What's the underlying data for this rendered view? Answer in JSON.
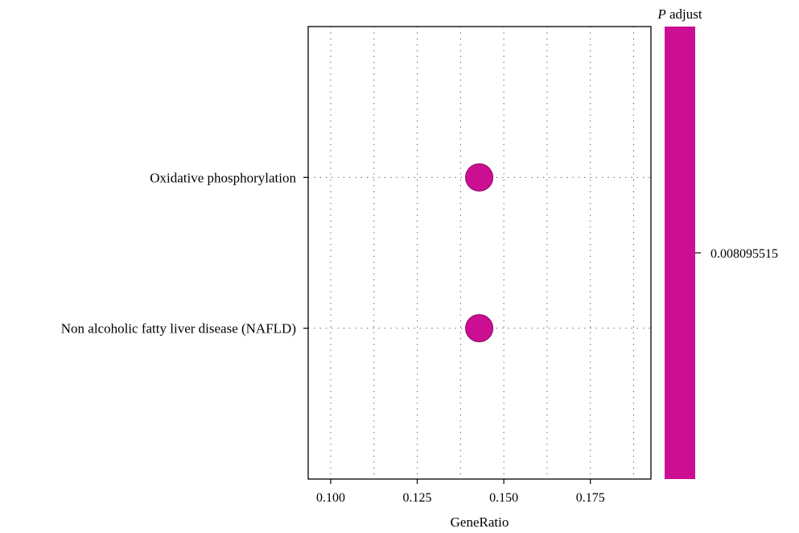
{
  "chart_data": {
    "type": "scatter",
    "title": "",
    "xlabel": "GeneRatio",
    "ylabel": "",
    "xlim": [
      0.0935,
      0.1925
    ],
    "xticks": [
      0.1,
      0.125,
      0.15,
      0.175
    ],
    "xtick_labels": [
      "0.100",
      "0.125",
      "0.150",
      "0.175"
    ],
    "xgrid_minor": [
      0.1125,
      0.1375,
      0.1625,
      0.1875
    ],
    "grid": true,
    "grid_style": "dotted",
    "categories": [
      "Oxidative phosphorylation",
      "Non alcoholic fatty liver disease (NAFLD)"
    ],
    "points": [
      {
        "category": "Oxidative phosphorylation",
        "x": 0.1429,
        "p_adjust": 0.008095515
      },
      {
        "category": "Non alcoholic fatty liver disease (NAFLD)",
        "x": 0.1429,
        "p_adjust": 0.008095515
      }
    ],
    "point_color": "#cc0e93",
    "point_stroke": "#8a0a63",
    "legend": {
      "title_italic": "P",
      "title_rest": " adjust",
      "color": "#cc0e93",
      "tick_labels": [
        "0.008095515"
      ],
      "placement": "right"
    }
  }
}
